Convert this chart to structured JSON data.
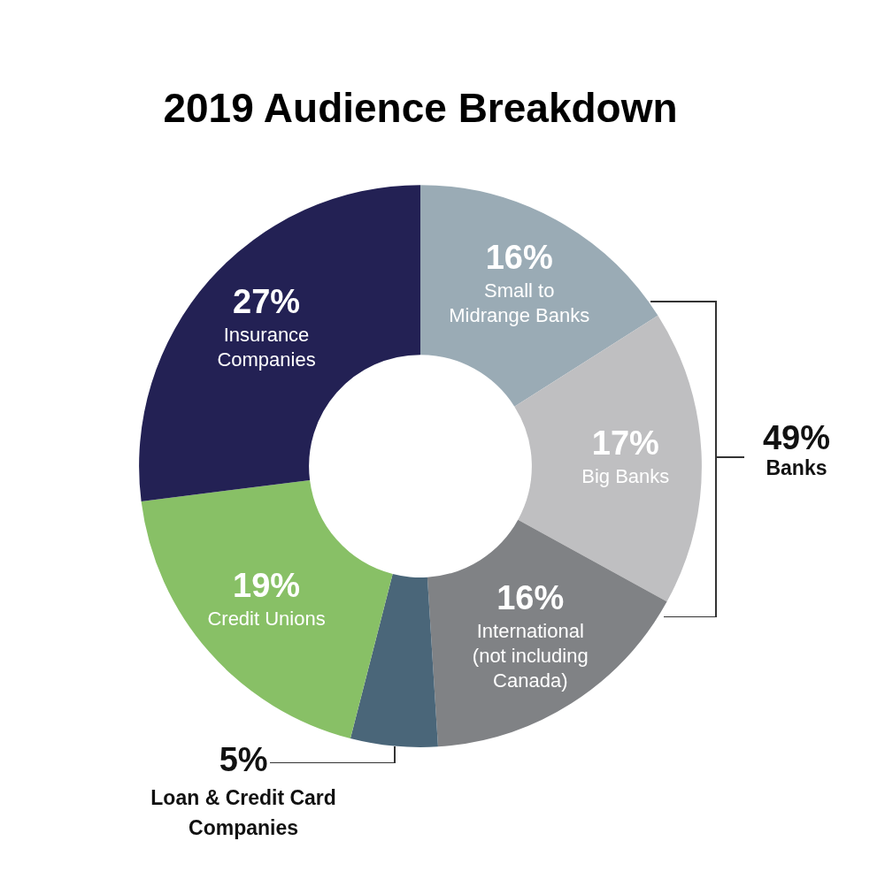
{
  "chart_data": {
    "type": "donut",
    "title": "2019 Audience Breakdown",
    "categories": [
      "Small to Midrange Banks",
      "Big Banks",
      "International (not including Canada)",
      "Loan & Credit Card Companies",
      "Credit Unions",
      "Insurance Companies"
    ],
    "values": [
      16,
      17,
      16,
      5,
      19,
      27
    ],
    "colors": [
      "#9aabb5",
      "#bfbfc1",
      "#808285",
      "#4a6679",
      "#88c066",
      "#232154"
    ],
    "value_labels": [
      "16%",
      "17%",
      "16%",
      "5%",
      "19%",
      "27%"
    ],
    "annotations": [
      "49% Banks"
    ]
  }
}
